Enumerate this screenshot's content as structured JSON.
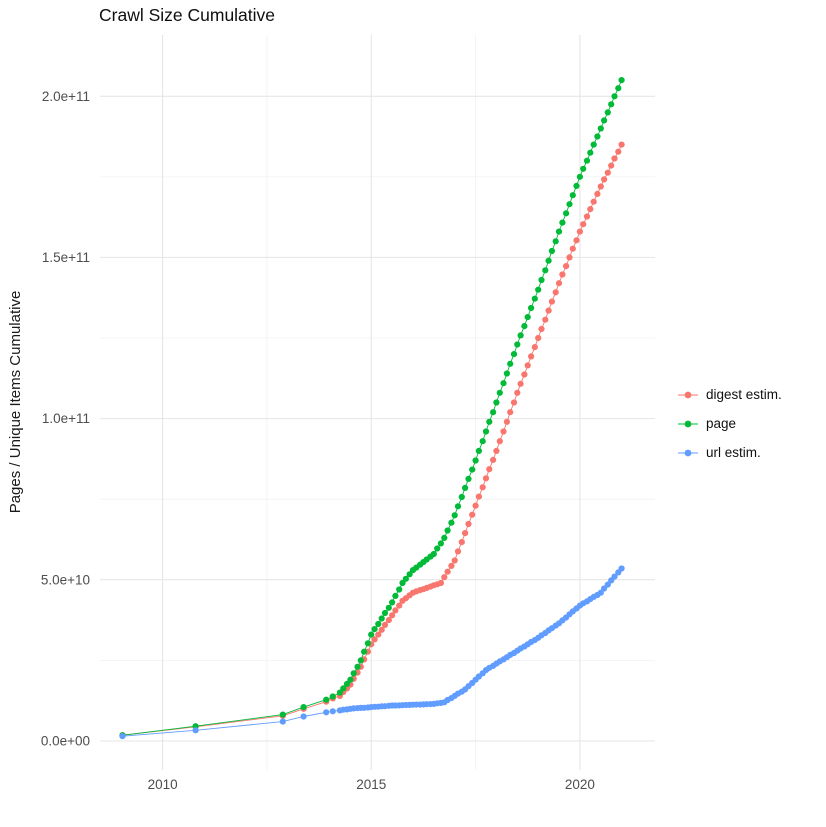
{
  "title": "Crawl Size Cumulative",
  "style": {
    "background": "#FFFFFF",
    "grid_major": "#E4E4E4",
    "grid_minor": "#F1F1F1",
    "tick_text": "#4D4D4D"
  },
  "axes": {
    "x": {
      "domain": [
        2008.5,
        2021.8
      ],
      "ticks": [
        2010,
        2015,
        2020
      ],
      "tick_labels": [
        "2010",
        "2015",
        "2020"
      ],
      "minor_ticks": [
        2012.5,
        2017.5
      ]
    },
    "y": {
      "label": "Pages / Unique Items Cumulative",
      "domain": [
        -9000000000.0,
        219000000000.0
      ],
      "ticks": [
        0,
        50000000000.0,
        100000000000.0,
        150000000000.0,
        200000000000.0
      ],
      "tick_labels": [
        "0.0e+00",
        "5.0e+10",
        "1.0e+11",
        "1.5e+11",
        "2.0e+11"
      ],
      "minor_ticks": [
        25000000000.0,
        75000000000.0,
        125000000000.0,
        175000000000.0
      ]
    }
  },
  "legend": {
    "items": [
      {
        "label": "digest estim.",
        "color": "#F8766D"
      },
      {
        "label": "page",
        "color": "#00BA38"
      },
      {
        "label": "url estim.",
        "color": "#619CFF"
      }
    ]
  },
  "chart_data": {
    "type": "scatter",
    "title": "Crawl Size Cumulative",
    "xlabel": "",
    "ylabel": "Pages / Unique Items Cumulative",
    "xlim": [
      2008.5,
      2021.8
    ],
    "ylim": [
      -9000000000.0,
      219000000000.0
    ],
    "grid": true,
    "legend_position": "right",
    "value_unit": 1000000000.0,
    "series": [
      {
        "name": "digest estim.",
        "color": "#F8766D",
        "points": [
          [
            2009.04,
            1.8
          ],
          [
            2010.79,
            4.4
          ],
          [
            2012.88,
            7.8
          ],
          [
            2013.38,
            10.0
          ],
          [
            2013.92,
            12.2
          ],
          [
            2014.08,
            13.2
          ],
          [
            2014.25,
            14.0
          ],
          [
            2014.33,
            15.2
          ],
          [
            2014.42,
            16.3
          ],
          [
            2014.5,
            17.5
          ],
          [
            2014.58,
            19.3
          ],
          [
            2014.67,
            21.2
          ],
          [
            2014.75,
            23.0
          ],
          [
            2014.83,
            25.3
          ],
          [
            2014.92,
            27.7
          ],
          [
            2015.0,
            30.0
          ],
          [
            2015.08,
            31.5
          ],
          [
            2015.17,
            33.0
          ],
          [
            2015.25,
            34.5
          ],
          [
            2015.33,
            36.0
          ],
          [
            2015.42,
            37.5
          ],
          [
            2015.5,
            39.0
          ],
          [
            2015.58,
            40.5
          ],
          [
            2015.67,
            42.0
          ],
          [
            2015.75,
            43.5
          ],
          [
            2015.83,
            44.3
          ],
          [
            2015.92,
            45.2
          ],
          [
            2016.0,
            46.0
          ],
          [
            2016.08,
            46.4
          ],
          [
            2016.17,
            46.8
          ],
          [
            2016.25,
            47.1
          ],
          [
            2016.33,
            47.5
          ],
          [
            2016.42,
            47.9
          ],
          [
            2016.5,
            48.3
          ],
          [
            2016.58,
            48.6
          ],
          [
            2016.67,
            49.0
          ],
          [
            2016.75,
            50.8
          ],
          [
            2016.83,
            52.5
          ],
          [
            2016.92,
            54.3
          ],
          [
            2017.0,
            56.0
          ],
          [
            2017.08,
            58.8
          ],
          [
            2017.17,
            61.7
          ],
          [
            2017.25,
            64.5
          ],
          [
            2017.33,
            67.3
          ],
          [
            2017.42,
            70.2
          ],
          [
            2017.5,
            73.0
          ],
          [
            2017.58,
            75.8
          ],
          [
            2017.67,
            78.7
          ],
          [
            2017.75,
            81.5
          ],
          [
            2017.83,
            84.3
          ],
          [
            2017.92,
            87.2
          ],
          [
            2018.0,
            90.0
          ],
          [
            2018.08,
            93.0
          ],
          [
            2018.17,
            96.0
          ],
          [
            2018.25,
            99.0
          ],
          [
            2018.33,
            102.0
          ],
          [
            2018.42,
            105.0
          ],
          [
            2018.5,
            108.0
          ],
          [
            2018.58,
            110.8
          ],
          [
            2018.67,
            113.7
          ],
          [
            2018.75,
            116.5
          ],
          [
            2018.83,
            119.3
          ],
          [
            2018.92,
            122.2
          ],
          [
            2019.0,
            125.0
          ],
          [
            2019.08,
            127.8
          ],
          [
            2019.17,
            130.7
          ],
          [
            2019.25,
            133.5
          ],
          [
            2019.33,
            136.3
          ],
          [
            2019.42,
            139.2
          ],
          [
            2019.5,
            142.0
          ],
          [
            2019.58,
            144.7
          ],
          [
            2019.67,
            147.3
          ],
          [
            2019.75,
            150.0
          ],
          [
            2019.83,
            152.7
          ],
          [
            2019.92,
            155.3
          ],
          [
            2020.0,
            158.0
          ],
          [
            2020.08,
            160.3
          ],
          [
            2020.17,
            162.7
          ],
          [
            2020.25,
            165.0
          ],
          [
            2020.33,
            167.3
          ],
          [
            2020.42,
            169.7
          ],
          [
            2020.5,
            172.0
          ],
          [
            2020.58,
            174.2
          ],
          [
            2020.67,
            176.3
          ],
          [
            2020.75,
            178.5
          ],
          [
            2020.83,
            180.7
          ],
          [
            2020.92,
            182.8
          ],
          [
            2021.0,
            185.0
          ]
        ]
      },
      {
        "name": "page",
        "color": "#00BA38",
        "points": [
          [
            2009.04,
            1.8
          ],
          [
            2010.79,
            4.6
          ],
          [
            2012.88,
            8.2
          ],
          [
            2013.38,
            10.5
          ],
          [
            2013.92,
            12.8
          ],
          [
            2014.08,
            13.8
          ],
          [
            2014.25,
            15.0
          ],
          [
            2014.33,
            16.3
          ],
          [
            2014.42,
            17.7
          ],
          [
            2014.5,
            19.0
          ],
          [
            2014.58,
            21.0
          ],
          [
            2014.67,
            23.0
          ],
          [
            2014.75,
            25.0
          ],
          [
            2014.83,
            27.7
          ],
          [
            2014.92,
            30.3
          ],
          [
            2015.0,
            33.0
          ],
          [
            2015.08,
            34.7
          ],
          [
            2015.17,
            36.3
          ],
          [
            2015.25,
            38.0
          ],
          [
            2015.33,
            39.7
          ],
          [
            2015.42,
            41.3
          ],
          [
            2015.5,
            43.0
          ],
          [
            2015.58,
            45.0
          ],
          [
            2015.67,
            47.0
          ],
          [
            2015.75,
            49.0
          ],
          [
            2015.83,
            50.3
          ],
          [
            2015.92,
            51.7
          ],
          [
            2016.0,
            53.0
          ],
          [
            2016.08,
            53.8
          ],
          [
            2016.17,
            54.7
          ],
          [
            2016.25,
            55.5
          ],
          [
            2016.33,
            56.3
          ],
          [
            2016.42,
            57.2
          ],
          [
            2016.5,
            58.0
          ],
          [
            2016.58,
            59.7
          ],
          [
            2016.67,
            61.3
          ],
          [
            2016.75,
            63.0
          ],
          [
            2016.83,
            65.3
          ],
          [
            2016.92,
            67.7
          ],
          [
            2017.0,
            70.0
          ],
          [
            2017.08,
            72.8
          ],
          [
            2017.17,
            75.7
          ],
          [
            2017.25,
            78.5
          ],
          [
            2017.33,
            81.3
          ],
          [
            2017.42,
            84.2
          ],
          [
            2017.5,
            87.0
          ],
          [
            2017.58,
            90.0
          ],
          [
            2017.67,
            93.0
          ],
          [
            2017.75,
            96.0
          ],
          [
            2017.83,
            99.0
          ],
          [
            2017.92,
            102.0
          ],
          [
            2018.0,
            105.0
          ],
          [
            2018.08,
            108.0
          ],
          [
            2018.17,
            111.0
          ],
          [
            2018.25,
            114.0
          ],
          [
            2018.33,
            117.0
          ],
          [
            2018.42,
            120.0
          ],
          [
            2018.5,
            123.0
          ],
          [
            2018.58,
            125.8
          ],
          [
            2018.67,
            128.7
          ],
          [
            2018.75,
            131.5
          ],
          [
            2018.83,
            134.3
          ],
          [
            2018.92,
            137.2
          ],
          [
            2019.0,
            140.0
          ],
          [
            2019.08,
            143.0
          ],
          [
            2019.17,
            146.0
          ],
          [
            2019.25,
            149.0
          ],
          [
            2019.33,
            152.0
          ],
          [
            2019.42,
            155.0
          ],
          [
            2019.5,
            158.0
          ],
          [
            2019.58,
            160.8
          ],
          [
            2019.67,
            163.7
          ],
          [
            2019.75,
            166.5
          ],
          [
            2019.83,
            169.3
          ],
          [
            2019.92,
            172.2
          ],
          [
            2020.0,
            175.0
          ],
          [
            2020.08,
            177.5
          ],
          [
            2020.17,
            180.0
          ],
          [
            2020.25,
            182.5
          ],
          [
            2020.33,
            185.0
          ],
          [
            2020.42,
            187.5
          ],
          [
            2020.5,
            190.0
          ],
          [
            2020.58,
            192.5
          ],
          [
            2020.67,
            195.0
          ],
          [
            2020.75,
            197.5
          ],
          [
            2020.83,
            200.0
          ],
          [
            2020.92,
            202.5
          ],
          [
            2021.0,
            205.0
          ]
        ]
      },
      {
        "name": "url estim.",
        "color": "#619CFF",
        "points": [
          [
            2009.04,
            1.5
          ],
          [
            2010.79,
            3.3
          ],
          [
            2012.88,
            6.0
          ],
          [
            2013.38,
            7.6
          ],
          [
            2013.92,
            8.9
          ],
          [
            2014.08,
            9.2
          ],
          [
            2014.25,
            9.5
          ],
          [
            2014.33,
            9.7
          ],
          [
            2014.42,
            9.8
          ],
          [
            2014.5,
            10.0
          ],
          [
            2014.58,
            10.1
          ],
          [
            2014.67,
            10.2
          ],
          [
            2014.75,
            10.25
          ],
          [
            2014.83,
            10.3
          ],
          [
            2014.92,
            10.4
          ],
          [
            2015.0,
            10.5
          ],
          [
            2015.08,
            10.6
          ],
          [
            2015.17,
            10.65
          ],
          [
            2015.25,
            10.75
          ],
          [
            2015.33,
            10.8
          ],
          [
            2015.42,
            10.9
          ],
          [
            2015.5,
            11.0
          ],
          [
            2015.58,
            11.0
          ],
          [
            2015.67,
            11.05
          ],
          [
            2015.75,
            11.1
          ],
          [
            2015.83,
            11.15
          ],
          [
            2015.92,
            11.2
          ],
          [
            2016.0,
            11.25
          ],
          [
            2016.08,
            11.3
          ],
          [
            2016.17,
            11.3
          ],
          [
            2016.25,
            11.35
          ],
          [
            2016.33,
            11.4
          ],
          [
            2016.42,
            11.45
          ],
          [
            2016.5,
            11.5
          ],
          [
            2016.58,
            11.7
          ],
          [
            2016.67,
            11.8
          ],
          [
            2016.75,
            12.0
          ],
          [
            2016.83,
            12.7
          ],
          [
            2016.92,
            13.3
          ],
          [
            2017.0,
            14.0
          ],
          [
            2017.08,
            14.7
          ],
          [
            2017.17,
            15.3
          ],
          [
            2017.25,
            16.0
          ],
          [
            2017.33,
            17.0
          ],
          [
            2017.42,
            18.0
          ],
          [
            2017.5,
            19.0
          ],
          [
            2017.58,
            20.0
          ],
          [
            2017.67,
            21.0
          ],
          [
            2017.75,
            22.0
          ],
          [
            2017.83,
            22.7
          ],
          [
            2017.92,
            23.3
          ],
          [
            2018.0,
            24.0
          ],
          [
            2018.08,
            24.7
          ],
          [
            2018.17,
            25.3
          ],
          [
            2018.25,
            26.0
          ],
          [
            2018.33,
            26.7
          ],
          [
            2018.42,
            27.3
          ],
          [
            2018.5,
            28.0
          ],
          [
            2018.58,
            28.7
          ],
          [
            2018.67,
            29.3
          ],
          [
            2018.75,
            30.0
          ],
          [
            2018.83,
            30.7
          ],
          [
            2018.92,
            31.3
          ],
          [
            2019.0,
            32.0
          ],
          [
            2019.08,
            32.8
          ],
          [
            2019.17,
            33.5
          ],
          [
            2019.25,
            34.3
          ],
          [
            2019.33,
            35.0
          ],
          [
            2019.42,
            35.8
          ],
          [
            2019.5,
            36.5
          ],
          [
            2019.58,
            37.4
          ],
          [
            2019.67,
            38.3
          ],
          [
            2019.75,
            39.3
          ],
          [
            2019.83,
            40.2
          ],
          [
            2019.92,
            41.1
          ],
          [
            2020.0,
            42.0
          ],
          [
            2020.08,
            42.7
          ],
          [
            2020.17,
            43.3
          ],
          [
            2020.25,
            44.0
          ],
          [
            2020.33,
            44.7
          ],
          [
            2020.42,
            45.3
          ],
          [
            2020.5,
            46.0
          ],
          [
            2020.58,
            47.3
          ],
          [
            2020.67,
            48.5
          ],
          [
            2020.75,
            49.8
          ],
          [
            2020.83,
            51.0
          ],
          [
            2020.92,
            52.3
          ],
          [
            2021.0,
            53.5
          ]
        ]
      }
    ]
  }
}
